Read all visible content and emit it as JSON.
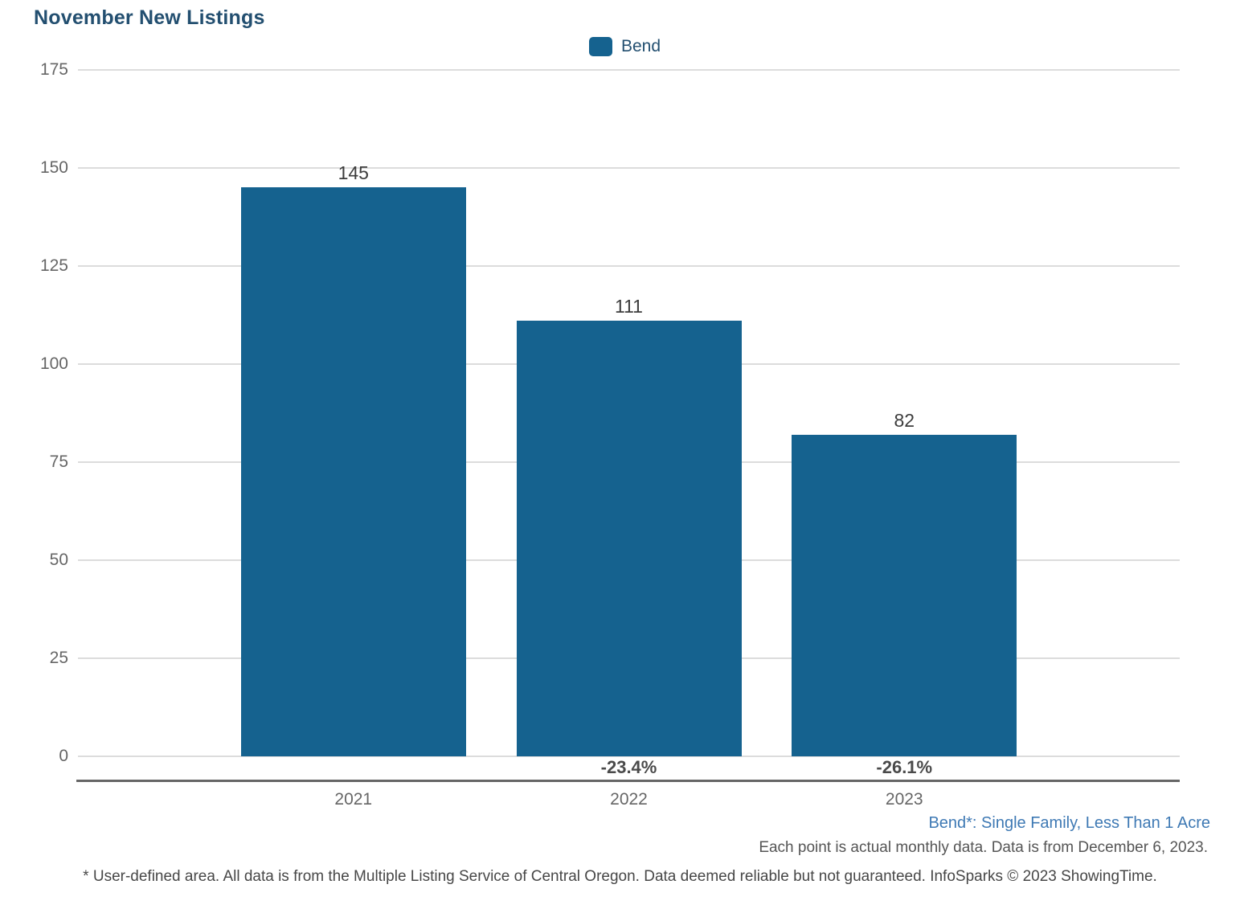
{
  "title": "November New Listings",
  "legend": {
    "label": "Bend",
    "swatch_color": "#15628f"
  },
  "chart_data": {
    "type": "bar",
    "title": "November New Listings",
    "categories": [
      "2021",
      "2022",
      "2023"
    ],
    "series": [
      {
        "name": "Bend",
        "values": [
          145,
          111,
          82
        ]
      }
    ],
    "value_labels": [
      "145",
      "111",
      "82"
    ],
    "pct_change_labels": [
      null,
      "-23.4%",
      "-26.1%"
    ],
    "yticks": [
      0,
      25,
      50,
      75,
      100,
      125,
      150,
      175
    ],
    "ylim": [
      0,
      175
    ],
    "xlabel": "",
    "ylabel": "",
    "bar_color": "#15628f",
    "grid": true,
    "legend_position": "top-center"
  },
  "footnotes": {
    "area_definition": "Bend*: Single Family, Less Than 1 Acre",
    "data_note": "Each point is actual monthly data. Data is from December 6, 2023.",
    "disclaimer": "* User-defined area. All data is from the Multiple Listing Service of Central Oregon. Data deemed reliable but not guaranteed. InfoSparks © 2023 ShowingTime."
  },
  "colors": {
    "title_text": "#234f70",
    "bar": "#15628f",
    "legend_text": "#234f70",
    "axis_line": "#666666",
    "gridline": "#dcdcdc",
    "tick_label": "#666666",
    "value_label": "#3c3c3c",
    "pct_label": "#4a4a4a",
    "area_definition_text": "#3e79b4",
    "note_text": "#555555"
  }
}
